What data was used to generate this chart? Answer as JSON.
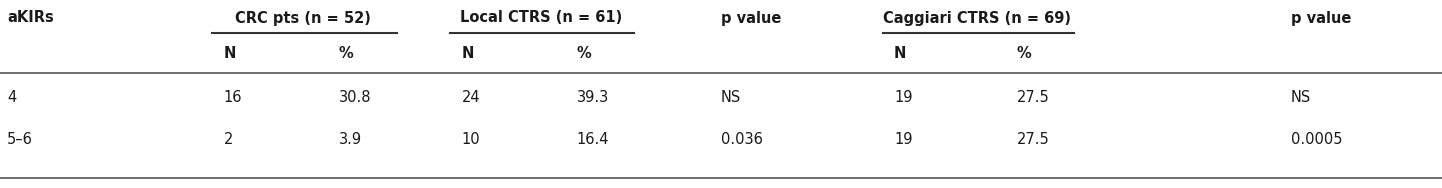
{
  "col_headers_row1": [
    "aKIRs",
    "CRC pts (n = 52)",
    "Local CTRS (n = 61)",
    "p value",
    "Caggiari CTRS (n = 69)",
    "p value"
  ],
  "col_headers_row2": [
    "N",
    "%",
    "N",
    "%",
    "N",
    "%"
  ],
  "rows": [
    [
      "4",
      "16",
      "30.8",
      "24",
      "39.3",
      "NS",
      "19",
      "27.5",
      "NS"
    ],
    [
      "5–6",
      "2",
      "3.9",
      "10",
      "16.4",
      "0.036",
      "19",
      "27.5",
      "0.0005"
    ]
  ],
  "background_color": "#ffffff",
  "text_color": "#1a1a1a",
  "font_size": 10.5,
  "figwidth": 14.42,
  "figheight": 1.88,
  "dpi": 100
}
